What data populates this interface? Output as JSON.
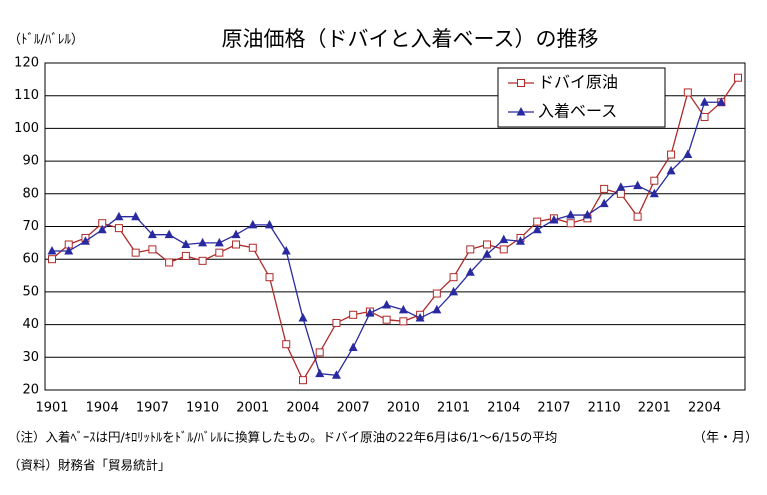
{
  "chart_data": {
    "type": "line",
    "title": "原油価格（ドバイと入着ベース）の推移",
    "y_unit": "（ﾄﾞﾙ/ﾊﾞﾚﾙ）",
    "x_unit": "（年・月）",
    "note": "（注）入着ﾍﾞｰｽは円/ｷﾛﾘｯﾄﾙをﾄﾞﾙ/ﾊﾞﾚﾙに換算したもの。ドバイ原油の22年6月は6/1～6/15の平均",
    "source": "（資料）財務省「貿易統計」",
    "categories": [
      "1901",
      null,
      null,
      "1904",
      null,
      null,
      "1907",
      null,
      null,
      "1910",
      null,
      null,
      "2001",
      null,
      null,
      "2004",
      null,
      null,
      "2007",
      null,
      null,
      "2010",
      null,
      null,
      "2101",
      null,
      null,
      "2104",
      null,
      null,
      "2107",
      null,
      null,
      "2110",
      null,
      null,
      "2201",
      null,
      null,
      "2204",
      null,
      null
    ],
    "series": [
      {
        "name": "ドバイ原油",
        "color": "#b02a2a",
        "marker": "square",
        "values": [
          60,
          64.5,
          66.5,
          71,
          69.5,
          62,
          63,
          59,
          61,
          59.5,
          62,
          64.5,
          63.5,
          54.5,
          34,
          23,
          31.5,
          40.5,
          43,
          44,
          41.5,
          41,
          43,
          49.5,
          54.5,
          63,
          64.5,
          63,
          66.5,
          71.5,
          72.5,
          71,
          72.5,
          81.5,
          80,
          73,
          84,
          92,
          111,
          103.5,
          108,
          115.5
        ]
      },
      {
        "name": "入着ベース",
        "color": "#2a2aa0",
        "marker": "triangle",
        "values": [
          62.5,
          62.5,
          65.5,
          69,
          73,
          73,
          67.5,
          67.5,
          64.5,
          65,
          65,
          67.5,
          70.5,
          70.5,
          62.5,
          42,
          25,
          24.5,
          33,
          43.5,
          46,
          44.5,
          42,
          44.5,
          50,
          56,
          61.5,
          66,
          65.5,
          69,
          72,
          73.5,
          73.5,
          77,
          82,
          82.5,
          80,
          87,
          92,
          108,
          108,
          null
        ]
      }
    ],
    "ylim": [
      20,
      120
    ],
    "yticks": [
      20,
      30,
      40,
      50,
      60,
      70,
      80,
      90,
      100,
      110,
      120
    ],
    "grid": true,
    "legend": "upper right"
  }
}
